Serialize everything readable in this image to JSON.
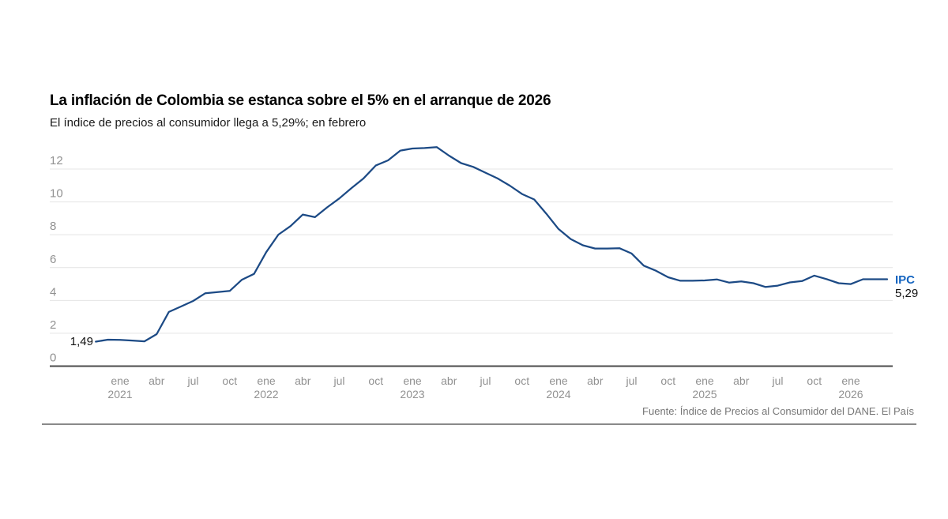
{
  "chart_data": {
    "type": "line",
    "title": "La inflación de Colombia se estanca sobre el 5% en el arranque de 2026",
    "subtitle": "El índice de precios al consumidor llega a 5,29%; en febrero",
    "series": [
      {
        "name": "IPC",
        "start": "nov 2020",
        "end": "feb 2026",
        "frequency": "monthly",
        "values": [
          1.49,
          1.61,
          1.6,
          1.56,
          1.51,
          1.95,
          3.3,
          3.63,
          3.97,
          4.44,
          4.51,
          4.58,
          5.26,
          5.62,
          6.94,
          8.01,
          8.53,
          9.23,
          9.07,
          9.67,
          10.21,
          10.84,
          11.44,
          12.22,
          12.53,
          13.12,
          13.25,
          13.28,
          13.34,
          12.82,
          12.36,
          12.13,
          11.78,
          11.43,
          10.99,
          10.48,
          10.15,
          9.28,
          8.35,
          7.74,
          7.36,
          7.16,
          7.16,
          7.18,
          6.86,
          6.12,
          5.81,
          5.41,
          5.2,
          5.2,
          5.22,
          5.28,
          5.09,
          5.16,
          5.05,
          4.82,
          4.9,
          5.1,
          5.18,
          5.51,
          5.3,
          5.05,
          5.0,
          5.29
        ]
      }
    ],
    "yticks": [
      0,
      2,
      4,
      6,
      8,
      10,
      12
    ],
    "ylim": [
      0,
      13.9
    ],
    "grid": true,
    "x_tick_offset_months": 2,
    "xticks": [
      {
        "label": "ene",
        "year": "2021"
      },
      {
        "label": "abr"
      },
      {
        "label": "jul"
      },
      {
        "label": "oct"
      },
      {
        "label": "ene",
        "year": "2022"
      },
      {
        "label": "abr"
      },
      {
        "label": "jul"
      },
      {
        "label": "oct"
      },
      {
        "label": "ene",
        "year": "2023"
      },
      {
        "label": "abr"
      },
      {
        "label": "jul"
      },
      {
        "label": "oct"
      },
      {
        "label": "ene",
        "year": "2024"
      },
      {
        "label": "abr"
      },
      {
        "label": "jul"
      },
      {
        "label": "oct"
      },
      {
        "label": "ene",
        "year": "2025"
      },
      {
        "label": "abr"
      },
      {
        "label": "jul"
      },
      {
        "label": "oct"
      },
      {
        "label": "ene",
        "year": "2026"
      }
    ],
    "annotations": {
      "start_value": "1,49",
      "series_label": "IPC",
      "end_value": "5,29"
    }
  },
  "footer": {
    "source": "Fuente: Índice de Precios al Consumidor del DANE. El País"
  },
  "colors": {
    "line": "#1c4a85",
    "series_label_text": "#1565c0",
    "grid": "#e4e4e4",
    "zero_axis": "#4b4b4b",
    "tick_text": "#919191",
    "annotation_text": "#111111",
    "footer_text": "#767676",
    "footer_rule": "#8a8a8a"
  }
}
